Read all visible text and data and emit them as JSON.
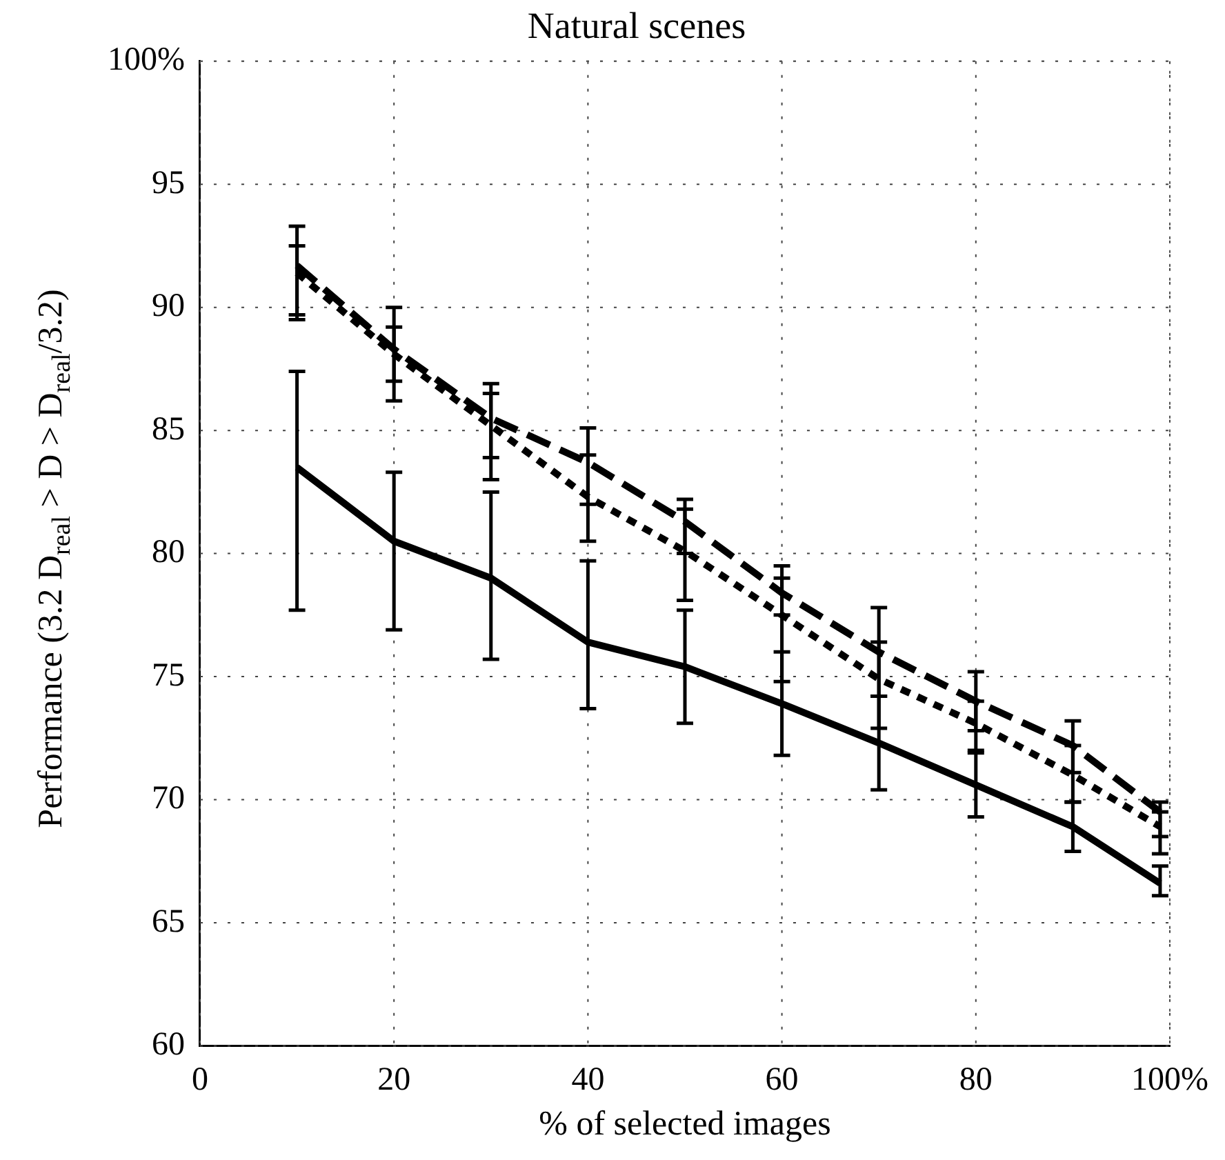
{
  "chart_data": {
    "type": "line",
    "title": "Natural scenes",
    "xlabel": "% of selected images",
    "ylabel": "Performance  (3.2 D$_{real}$ > D > D$_{real}$/3.2)",
    "x": [
      10,
      20,
      30,
      40,
      50,
      60,
      70,
      80,
      90,
      99
    ],
    "xlim": [
      0,
      100
    ],
    "xticks": [
      0,
      20,
      40,
      60,
      80,
      {
        "value": 100,
        "label": "100%"
      }
    ],
    "ylim": [
      60,
      100
    ],
    "yticks": [
      60,
      65,
      70,
      75,
      80,
      85,
      90,
      95,
      {
        "value": 100,
        "label": "100%"
      }
    ],
    "grid": true,
    "legend": false,
    "marker": "none",
    "series": [
      {
        "color": "#000000",
        "line_style": "dashed",
        "values": [
          91.7,
          88.3,
          85.5,
          83.7,
          81.3,
          78.4,
          76.0,
          74.0,
          72.2,
          69.5
        ],
        "errors": [
          [
            89.7,
            93.3
          ],
          [
            86.2,
            90.0
          ],
          [
            83.0,
            86.9
          ],
          [
            82.0,
            85.1
          ],
          [
            80.0,
            82.2
          ],
          [
            77.5,
            79.5
          ],
          [
            74.2,
            77.8
          ],
          [
            72.8,
            75.2
          ],
          [
            71.1,
            73.2
          ],
          [
            68.5,
            69.9
          ]
        ]
      },
      {
        "color": "#000000",
        "line_style": "dotted",
        "values": [
          91.4,
          88.1,
          85.2,
          82.3,
          80.1,
          77.5,
          74.9,
          73.1,
          71.0,
          68.9
        ],
        "errors": [
          [
            89.5,
            92.5
          ],
          [
            87.0,
            89.2
          ],
          [
            83.9,
            86.5
          ],
          [
            80.5,
            84.0
          ],
          [
            78.1,
            81.8
          ],
          [
            74.8,
            79.0
          ],
          [
            72.9,
            76.4
          ],
          [
            71.9,
            74.0
          ],
          [
            69.9,
            72.2
          ],
          [
            67.8,
            69.5
          ]
        ]
      },
      {
        "color": "#000000",
        "line_style": "solid",
        "values": [
          83.5,
          80.5,
          79.0,
          76.4,
          75.4,
          73.9,
          72.3,
          70.6,
          68.9,
          66.6
        ],
        "errors": [
          [
            77.7,
            87.4
          ],
          [
            76.9,
            83.3
          ],
          [
            75.7,
            82.5
          ],
          [
            73.7,
            79.7
          ],
          [
            73.1,
            77.7
          ],
          [
            71.8,
            76.0
          ],
          [
            70.4,
            74.2
          ],
          [
            69.3,
            72.0
          ],
          [
            67.9,
            69.9
          ],
          [
            66.1,
            67.3
          ]
        ]
      }
    ]
  }
}
